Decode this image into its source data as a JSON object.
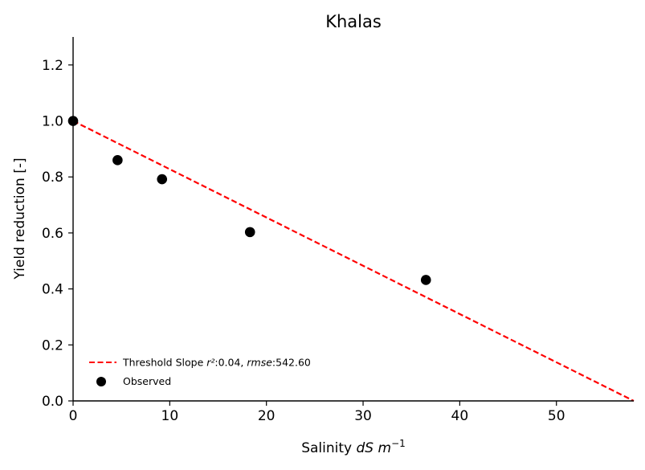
{
  "chart_data": {
    "type": "scatter",
    "title": "Khalas",
    "xlabel": {
      "prefix": "Salinity ",
      "var1": "dS",
      "space": " ",
      "var2": "m",
      "sup": "−1"
    },
    "ylabel": "Yield reduction [-]",
    "xlim": [
      0,
      58
    ],
    "ylim": [
      0,
      1.3
    ],
    "xticks": [
      "0",
      "10",
      "20",
      "30",
      "40",
      "50"
    ],
    "xtick_values": [
      0,
      10,
      20,
      30,
      40,
      50
    ],
    "yticks": [
      "0.0",
      "0.2",
      "0.4",
      "0.6",
      "0.8",
      "1.0",
      "1.2"
    ],
    "ytick_values": [
      0.0,
      0.2,
      0.4,
      0.6,
      0.8,
      1.0,
      1.2
    ],
    "grid": false,
    "legend_placement": "lower-left",
    "series": [
      {
        "name": "Threshold Slope",
        "kind": "line",
        "style": "dashed",
        "color": "#ff0000",
        "x": [
          0,
          58
        ],
        "y": [
          1.0,
          0.0
        ],
        "legend": {
          "prefix": "Threshold Slope ",
          "r2_label": "r²",
          "r2_value": ":0.04, ",
          "rmse_label": "rmse",
          "rmse_value": ":542.60"
        }
      },
      {
        "name": "Observed",
        "kind": "scatter",
        "color": "#000000",
        "x": [
          0,
          4.6,
          9.2,
          18.3,
          36.5
        ],
        "y": [
          1.0,
          0.86,
          0.792,
          0.603,
          0.432
        ]
      }
    ]
  }
}
